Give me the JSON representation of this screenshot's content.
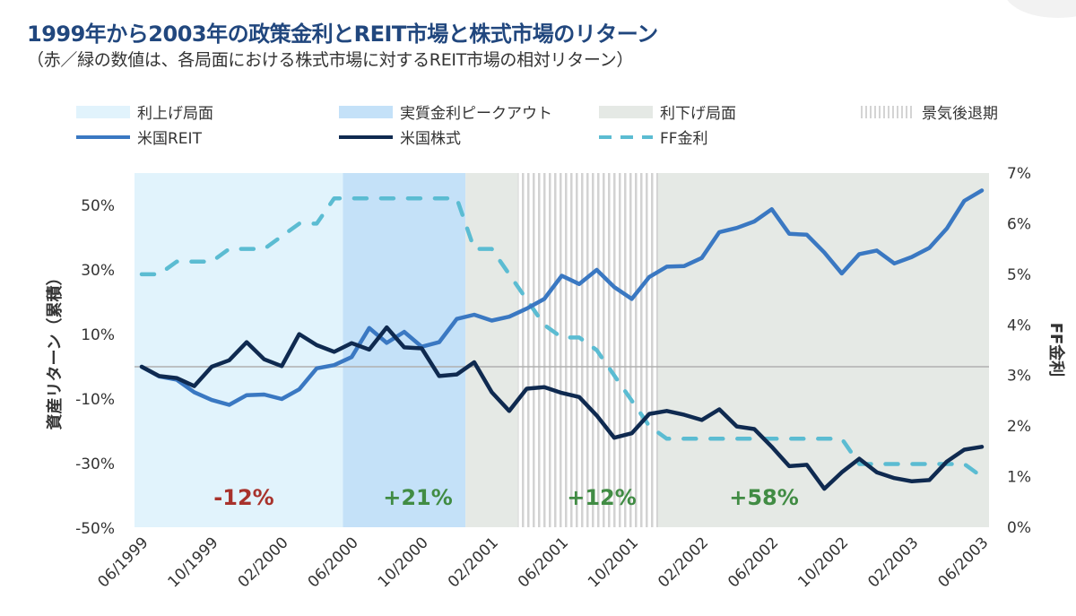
{
  "title": "1999年から2003年の政策金利とREIT市場と株式市場のリターン",
  "subtitle": "（赤／緑の数値は、各局面における株式市場に対するREIT市場の相対リターン）",
  "legend": {
    "hike": "利上げ局面",
    "peak": "実質金利ピークアウト",
    "cut": "利下げ局面",
    "recession": "景気後退期",
    "reit": "米国REIT",
    "stocks": "米国株式",
    "ff": "FF金利"
  },
  "colors": {
    "hike": "#e1f3fc",
    "peak": "#c4e1f8",
    "cut": "#e5e9e5",
    "reit": "#3a78c2",
    "stocks": "#0f2a50",
    "ff": "#5bbcd2",
    "negative": "#a8322c",
    "positive": "#418c44",
    "title": "#21477e"
  },
  "chart_data": {
    "type": "line",
    "title": "1999年から2003年の政策金利とREIT市場と株式市場のリターン",
    "ylabel": "資産リターン（累積）",
    "y2label": "FF金利",
    "ylim": [
      -50,
      60
    ],
    "y_ticks": [
      "50%",
      "30%",
      "10%",
      "-10%",
      "-30%",
      "-50%"
    ],
    "y_tick_values": [
      50,
      30,
      10,
      -10,
      -30,
      -50
    ],
    "y2lim": [
      0,
      7
    ],
    "y2_ticks": [
      "7%",
      "6%",
      "5%",
      "4%",
      "3%",
      "2%",
      "1%",
      "0%"
    ],
    "y2_tick_values": [
      7,
      6,
      5,
      4,
      3,
      2,
      1,
      0
    ],
    "x_start": "06/1999",
    "x_ticks": [
      "06/1999",
      "10/1999",
      "02/2000",
      "06/2000",
      "10/2000",
      "02/2001",
      "06/2001",
      "10/2001",
      "02/2002",
      "06/2002",
      "10/2002",
      "02/2003",
      "06/2003"
    ],
    "grid": false,
    "legend_position": "top",
    "regions": [
      {
        "name": "利上げ局面",
        "key": "hike",
        "start": "06/1999",
        "end": "05/2000",
        "label": "-12%",
        "sign": "negative"
      },
      {
        "name": "実質金利ピークアウト",
        "key": "peak",
        "start": "06/2000",
        "end": "12/2000",
        "label": "+21%",
        "sign": "positive"
      },
      {
        "name": "利下げ局面",
        "key": "cut",
        "start": "01/2001",
        "end": "06/2003",
        "label": "+58%",
        "sign": "positive"
      }
    ],
    "recession": {
      "name": "景気後退期",
      "start": "04/2001",
      "end": "11/2001",
      "label": "+12%",
      "sign": "positive"
    },
    "series": [
      {
        "name": "米国REIT",
        "axis": "left",
        "style": "solid",
        "values": [
          0,
          -3,
          -4,
          -7.9,
          -10.3,
          -11.8,
          -8.8,
          -8.6,
          -10,
          -7,
          -0.5,
          0.5,
          3,
          12,
          7.4,
          10.8,
          6.2,
          7.6,
          14.8,
          16.1,
          14.3,
          15.5,
          18,
          21,
          28.2,
          25.6,
          30,
          24.7,
          21,
          27.8,
          31,
          31.2,
          33.7,
          41.7,
          43,
          45,
          48.8,
          41.2,
          40.9,
          35.4,
          28.9,
          34.9,
          36,
          32,
          34,
          36.8,
          42.8,
          51.4,
          54.6
        ]
      },
      {
        "name": "米国株式",
        "axis": "left",
        "style": "solid",
        "values": [
          0,
          -2.9,
          -3.5,
          -6,
          0,
          2,
          7.6,
          2.3,
          0.2,
          10.1,
          6.7,
          4.6,
          7.3,
          5.3,
          12.2,
          6,
          5.7,
          -2.9,
          -2.4,
          1.4,
          -7.9,
          -13.7,
          -6.8,
          -6.3,
          -8.1,
          -9.4,
          -15.1,
          -22,
          -20.6,
          -14.6,
          -13.7,
          -14.9,
          -16.5,
          -13.2,
          -18.5,
          -19.3,
          -24.8,
          -30.8,
          -30.4,
          -37.8,
          -32.7,
          -28.5,
          -32.7,
          -34.5,
          -35.5,
          -35.1,
          -29.4,
          -25.7,
          -24.8
        ]
      },
      {
        "name": "FF金利",
        "axis": "right",
        "style": "dashed",
        "values": [
          5,
          5,
          5.25,
          5.25,
          5.25,
          5.5,
          5.5,
          5.5,
          5.75,
          6,
          6,
          6.5,
          6.5,
          6.5,
          6.5,
          6.5,
          6.5,
          6.5,
          6.5,
          5.5,
          5.5,
          5,
          4.5,
          4,
          3.75,
          3.75,
          3.5,
          3,
          2.5,
          2,
          1.75,
          1.75,
          1.75,
          1.75,
          1.75,
          1.75,
          1.75,
          1.75,
          1.75,
          1.75,
          1.75,
          1.25,
          1.25,
          1.25,
          1.25,
          1.25,
          1.25,
          1.25,
          1
        ]
      }
    ]
  }
}
